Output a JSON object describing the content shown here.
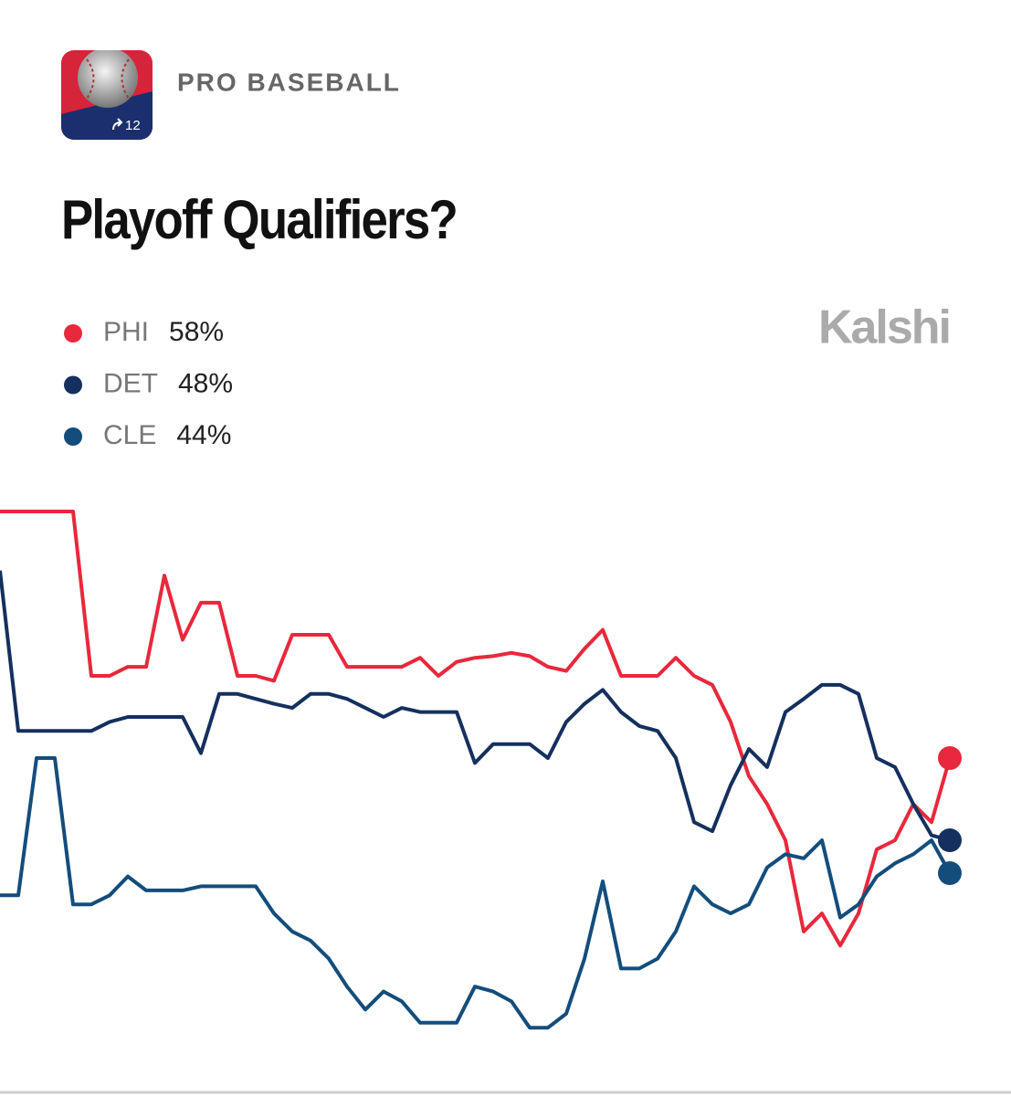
{
  "header": {
    "category": "PRO BASEBALL",
    "badge": "12",
    "brand": "Kalshi"
  },
  "chart_data": {
    "type": "line",
    "title": "Playoff Qualifiers?",
    "ylim": [
      24,
      89
    ],
    "series": [
      {
        "name": "PHI",
        "color": "#e8283c",
        "values": [
          88,
          88,
          88,
          88,
          88,
          68,
          68,
          69.1,
          69.1,
          80.2,
          72.4,
          76.9,
          76.9,
          68,
          68,
          67.4,
          73,
          73,
          73,
          69.1,
          69.1,
          69.1,
          69.1,
          70.2,
          68,
          69.7,
          70.2,
          70.4,
          70.8,
          70.4,
          69.1,
          68.6,
          71.3,
          73.6,
          68,
          68,
          68,
          70.2,
          68,
          66.9,
          62.4,
          55.8,
          52.4,
          48,
          36.9,
          39.1,
          35.2,
          39.1,
          46.9,
          48,
          52.4,
          50.2,
          58
        ],
        "value_labels": [
          null,
          null,
          null,
          null,
          null,
          null,
          null,
          null,
          null,
          null,
          null,
          null,
          null,
          null,
          null,
          null,
          null,
          null,
          null,
          null,
          null,
          null,
          null,
          null,
          null,
          null,
          null,
          null,
          null,
          null,
          null,
          null,
          null,
          null,
          null,
          null,
          null,
          null,
          null,
          null,
          null,
          null,
          null,
          null,
          null,
          null,
          null,
          null,
          null,
          null,
          null,
          null,
          "58%"
        ]
      },
      {
        "name": "DET",
        "color": "#15305e",
        "values": [
          80.8,
          61.3,
          61.3,
          61.3,
          61.3,
          61.3,
          62.4,
          63,
          63,
          63,
          63,
          58.6,
          65.8,
          65.8,
          65.2,
          64.6,
          64.1,
          65.8,
          65.8,
          65.2,
          64.1,
          63,
          64.1,
          63.6,
          63.6,
          63.6,
          57.4,
          59.7,
          59.7,
          59.7,
          58,
          62.4,
          64.6,
          66.3,
          63.6,
          61.9,
          61.3,
          58,
          50.2,
          49.1,
          54.7,
          59.1,
          56.9,
          63.6,
          65.2,
          66.9,
          66.9,
          65.8,
          58,
          56.9,
          52.4,
          48.6,
          48
        ],
        "value_labels": [
          null,
          null,
          null,
          null,
          null,
          null,
          null,
          null,
          null,
          null,
          null,
          null,
          null,
          null,
          null,
          null,
          null,
          null,
          null,
          null,
          null,
          null,
          null,
          null,
          null,
          null,
          null,
          null,
          null,
          null,
          null,
          null,
          null,
          null,
          null,
          null,
          null,
          null,
          null,
          null,
          null,
          null,
          null,
          null,
          null,
          null,
          null,
          null,
          null,
          null,
          null,
          null,
          "48%"
        ]
      },
      {
        "name": "CLE",
        "color": "#134d7c",
        "values": [
          41.3,
          41.3,
          58,
          58,
          40.2,
          40.2,
          41.3,
          43.6,
          41.9,
          41.9,
          41.9,
          42.4,
          42.4,
          42.4,
          42.4,
          39.1,
          36.9,
          35.8,
          33.6,
          30.2,
          27.4,
          29.6,
          28.4,
          25.8,
          25.8,
          25.8,
          30.2,
          29.6,
          28.4,
          25.2,
          25.2,
          26.9,
          33.6,
          43,
          32.4,
          32.4,
          33.6,
          36.9,
          42.4,
          40.2,
          39.1,
          40.2,
          44.7,
          46.3,
          45.8,
          48,
          38.6,
          40.2,
          43.6,
          45.2,
          46.3,
          48,
          44
        ],
        "value_labels": [
          null,
          null,
          null,
          null,
          null,
          null,
          null,
          null,
          null,
          null,
          null,
          null,
          null,
          null,
          null,
          null,
          null,
          null,
          null,
          null,
          null,
          null,
          null,
          null,
          null,
          null,
          null,
          null,
          null,
          null,
          null,
          null,
          null,
          null,
          null,
          null,
          null,
          null,
          null,
          null,
          null,
          null,
          null,
          null,
          null,
          null,
          null,
          null,
          null,
          null,
          null,
          null,
          "44%"
        ]
      }
    ]
  }
}
